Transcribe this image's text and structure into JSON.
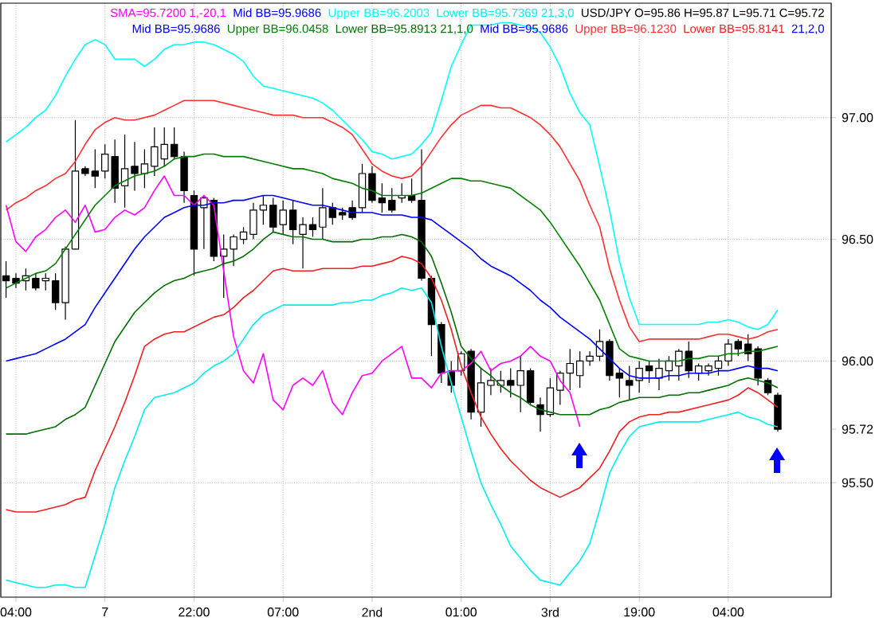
{
  "chart_data": {
    "type": "candlestick",
    "ohlc": [
      [
        96.35,
        96.41,
        96.26,
        96.33
      ],
      [
        96.34,
        96.36,
        96.3,
        96.32
      ],
      [
        96.33,
        96.38,
        96.29,
        96.35
      ],
      [
        96.34,
        96.36,
        96.29,
        96.3
      ],
      [
        96.33,
        96.36,
        96.29,
        96.34
      ],
      [
        96.33,
        96.36,
        96.21,
        96.24
      ],
      [
        96.24,
        96.47,
        96.17,
        96.46
      ],
      [
        96.46,
        96.99,
        96.46,
        96.78
      ],
      [
        96.79,
        96.8,
        96.76,
        96.77
      ],
      [
        96.78,
        96.87,
        96.71,
        96.76
      ],
      [
        96.78,
        96.89,
        96.75,
        96.85
      ],
      [
        96.84,
        96.91,
        96.65,
        96.71
      ],
      [
        96.72,
        96.93,
        96.63,
        96.79
      ],
      [
        96.8,
        96.9,
        96.7,
        96.77
      ],
      [
        96.77,
        96.87,
        96.71,
        96.81
      ],
      [
        96.8,
        96.96,
        96.76,
        96.88
      ],
      [
        96.83,
        96.96,
        96.8,
        96.89
      ],
      [
        96.89,
        96.96,
        96.83,
        96.84
      ],
      [
        96.84,
        96.86,
        96.65,
        96.7
      ],
      [
        96.68,
        96.7,
        96.35,
        96.46
      ],
      [
        96.63,
        96.68,
        96.46,
        96.67
      ],
      [
        96.66,
        96.67,
        96.41,
        96.43
      ],
      [
        96.43,
        96.52,
        96.26,
        96.46
      ],
      [
        96.46,
        96.52,
        96.39,
        96.51
      ],
      [
        96.5,
        96.55,
        96.48,
        96.53
      ],
      [
        96.52,
        96.65,
        96.5,
        96.62
      ],
      [
        96.62,
        96.68,
        96.56,
        96.64
      ],
      [
        96.64,
        96.67,
        96.53,
        96.55
      ],
      [
        96.56,
        96.66,
        96.52,
        96.62
      ],
      [
        96.62,
        96.66,
        96.48,
        96.54
      ],
      [
        96.52,
        96.59,
        96.38,
        96.56
      ],
      [
        96.56,
        96.59,
        96.51,
        96.54
      ],
      [
        96.55,
        96.71,
        96.5,
        96.63
      ],
      [
        96.63,
        96.65,
        96.56,
        96.59
      ],
      [
        96.61,
        96.63,
        96.58,
        96.6
      ],
      [
        96.63,
        96.66,
        96.58,
        96.59
      ],
      [
        96.63,
        96.81,
        96.61,
        96.77
      ],
      [
        96.77,
        96.8,
        96.65,
        96.66
      ],
      [
        96.67,
        96.73,
        96.61,
        96.65
      ],
      [
        96.66,
        96.71,
        96.61,
        96.62
      ],
      [
        96.67,
        96.73,
        96.65,
        96.68
      ],
      [
        96.68,
        96.75,
        96.65,
        96.66
      ],
      [
        96.66,
        96.87,
        96.33,
        96.34
      ],
      [
        96.34,
        96.35,
        96.02,
        96.15
      ],
      [
        96.15,
        96.16,
        95.91,
        95.95
      ],
      [
        95.96,
        96.0,
        95.87,
        95.9
      ],
      [
        95.96,
        96.04,
        95.94,
        96.03
      ],
      [
        96.04,
        96.05,
        95.76,
        95.79
      ],
      [
        95.79,
        95.97,
        95.73,
        95.91
      ],
      [
        95.9,
        95.97,
        95.86,
        95.92
      ],
      [
        95.9,
        95.96,
        95.87,
        95.92
      ],
      [
        95.92,
        95.97,
        95.85,
        95.9
      ],
      [
        95.9,
        96.02,
        95.79,
        95.96
      ],
      [
        95.96,
        95.97,
        95.82,
        95.83
      ],
      [
        95.82,
        95.85,
        95.71,
        95.78
      ],
      [
        95.78,
        95.93,
        95.77,
        95.89
      ],
      [
        95.88,
        95.96,
        95.82,
        95.95
      ],
      [
        95.95,
        96.05,
        95.88,
        95.99
      ],
      [
        95.94,
        96.04,
        95.89,
        96.0
      ],
      [
        96.0,
        96.04,
        95.98,
        96.02
      ],
      [
        96.02,
        96.13,
        96.0,
        96.08
      ],
      [
        96.08,
        96.09,
        95.92,
        95.94
      ],
      [
        95.95,
        95.97,
        95.85,
        95.93
      ],
      [
        95.92,
        95.98,
        95.84,
        95.9
      ],
      [
        95.92,
        96.0,
        95.87,
        95.97
      ],
      [
        95.98,
        96.0,
        95.91,
        95.96
      ],
      [
        95.93,
        96.01,
        95.88,
        95.97
      ],
      [
        95.96,
        96.02,
        95.92,
        96.0
      ],
      [
        95.98,
        96.05,
        95.92,
        96.04
      ],
      [
        96.04,
        96.08,
        95.93,
        95.96
      ],
      [
        95.95,
        95.99,
        95.92,
        95.98
      ],
      [
        95.96,
        95.99,
        95.94,
        95.98
      ],
      [
        95.97,
        96.02,
        95.94,
        96.0
      ],
      [
        96.0,
        96.09,
        95.98,
        96.07
      ],
      [
        96.08,
        96.09,
        96.02,
        96.05
      ],
      [
        96.07,
        96.11,
        96.0,
        96.03
      ],
      [
        96.05,
        96.06,
        95.9,
        95.93
      ],
      [
        95.92,
        95.93,
        95.86,
        95.87
      ],
      [
        95.86,
        95.87,
        95.71,
        95.72
      ]
    ],
    "series": [
      {
        "name": "SMA=95.7200  1,-20,1",
        "type": "line",
        "color": "#ff00ff",
        "values": [
          96.64,
          96.49,
          96.45,
          96.51,
          96.54,
          96.59,
          96.62,
          96.57,
          96.64,
          96.53,
          96.54,
          96.59,
          96.62,
          96.6,
          96.63,
          96.7,
          96.76,
          96.68,
          96.68,
          96.64,
          96.68,
          96.64,
          96.37,
          96.1,
          95.96,
          95.91,
          96.03,
          95.84,
          95.8,
          95.9,
          95.93,
          95.9,
          95.96,
          95.83,
          95.78,
          95.87,
          95.94,
          95.95,
          96.0,
          96.03,
          96.06,
          95.93,
          95.93,
          95.89,
          95.95,
          95.96,
          95.96,
          95.99,
          96.04,
          95.96,
          95.99,
          96.0,
          96.02,
          96.06,
          96.02,
          96.0,
          95.92,
          95.87,
          95.73,
          null,
          null,
          null,
          null,
          null,
          null,
          null,
          null,
          null,
          null,
          null,
          null,
          null,
          null,
          null,
          null,
          null,
          null,
          null,
          null
        ]
      },
      {
        "name": "Mid BB=95.9686",
        "type": "line",
        "color": "#0000ff",
        "values": [
          96.0,
          96.01,
          96.02,
          96.03,
          96.05,
          96.07,
          96.09,
          96.12,
          96.15,
          96.22,
          96.28,
          96.34,
          96.4,
          96.46,
          96.51,
          96.55,
          96.59,
          96.61,
          96.63,
          96.64,
          96.64,
          96.65,
          96.65,
          96.66,
          96.66,
          96.67,
          96.68,
          96.68,
          96.67,
          96.66,
          96.65,
          96.64,
          96.64,
          96.63,
          96.62,
          96.61,
          96.61,
          96.61,
          96.6,
          96.6,
          96.6,
          96.59,
          96.59,
          96.58,
          96.55,
          96.52,
          96.49,
          96.46,
          96.42,
          96.39,
          96.37,
          96.35,
          96.32,
          96.29,
          96.25,
          96.22,
          96.18,
          96.15,
          96.12,
          96.09,
          96.05,
          96.01,
          95.97,
          95.94,
          95.93,
          95.93,
          95.93,
          95.94,
          95.94,
          95.95,
          95.95,
          95.95,
          95.96,
          95.96,
          95.97,
          95.98,
          95.97,
          95.97,
          95.96
        ]
      },
      {
        "name": "Upper BB=96.2003",
        "type": "line",
        "color": "#00ffff",
        "values": [
          96.9,
          96.93,
          96.96,
          97.0,
          97.03,
          97.09,
          97.17,
          97.24,
          97.3,
          97.32,
          97.3,
          97.24,
          97.24,
          97.24,
          97.21,
          97.24,
          97.28,
          97.3,
          97.3,
          97.31,
          97.31,
          97.3,
          97.28,
          97.26,
          97.23,
          97.17,
          97.13,
          97.12,
          97.11,
          97.1,
          97.09,
          97.08,
          97.06,
          97.03,
          96.99,
          96.95,
          96.91,
          96.86,
          96.85,
          96.83,
          96.84,
          96.85,
          96.89,
          96.94,
          97.07,
          97.21,
          97.3,
          97.38,
          97.38,
          97.38,
          97.39,
          97.39,
          97.38,
          97.37,
          97.35,
          97.29,
          97.21,
          97.1,
          97.02,
          96.97,
          96.8,
          96.62,
          96.41,
          96.26,
          96.15,
          96.15,
          96.15,
          96.15,
          96.15,
          96.15,
          96.15,
          96.16,
          96.16,
          96.17,
          96.16,
          96.14,
          96.13,
          96.15,
          96.21
        ]
      },
      {
        "name": "Lower BB=95.7369  21,3,0",
        "type": "line",
        "color": "#00eeee",
        "values": [
          95.1,
          95.09,
          95.08,
          95.07,
          95.07,
          95.08,
          95.08,
          95.07,
          95.07,
          95.2,
          95.33,
          95.48,
          95.59,
          95.69,
          95.8,
          95.85,
          95.86,
          95.87,
          95.89,
          95.91,
          95.95,
          95.98,
          96.0,
          96.03,
          96.09,
          96.15,
          96.19,
          96.21,
          96.23,
          96.23,
          96.23,
          96.23,
          96.23,
          96.23,
          96.24,
          96.24,
          96.25,
          96.25,
          96.27,
          96.28,
          96.3,
          96.29,
          96.3,
          96.24,
          96.06,
          95.91,
          95.77,
          95.63,
          95.5,
          95.41,
          95.33,
          95.24,
          95.19,
          95.14,
          95.1,
          95.09,
          95.08,
          95.13,
          95.18,
          95.25,
          95.39,
          95.54,
          95.62,
          95.69,
          95.73,
          95.74,
          95.75,
          95.75,
          95.75,
          95.75,
          95.75,
          95.76,
          95.77,
          95.78,
          95.79,
          95.77,
          95.76,
          95.74,
          95.73
        ]
      },
      {
        "name": "Upper BB=96.0458",
        "type": "line",
        "color": "#008000",
        "values": [
          96.3,
          96.32,
          96.34,
          96.36,
          96.37,
          96.4,
          96.46,
          96.52,
          96.58,
          96.64,
          96.68,
          96.72,
          96.74,
          96.76,
          96.77,
          96.78,
          96.8,
          96.83,
          96.84,
          96.84,
          96.85,
          96.85,
          96.84,
          96.84,
          96.84,
          96.83,
          96.82,
          96.81,
          96.8,
          96.79,
          96.79,
          96.78,
          96.77,
          96.75,
          96.74,
          96.73,
          96.71,
          96.7,
          96.68,
          96.68,
          96.68,
          96.68,
          96.69,
          96.71,
          96.73,
          96.75,
          96.75,
          96.74,
          96.74,
          96.73,
          96.72,
          96.71,
          96.68,
          96.65,
          96.62,
          96.57,
          96.51,
          96.45,
          96.39,
          96.32,
          96.25,
          96.15,
          96.05,
          96.02,
          96.01,
          96.0,
          96.0,
          96.0,
          96.0,
          96.01,
          96.01,
          96.02,
          96.02,
          96.03,
          96.03,
          96.04,
          96.04,
          96.05,
          96.06
        ]
      },
      {
        "name": "Lower BB=95.8913  21,1,0",
        "type": "line",
        "color": "#006e00",
        "values": [
          95.7,
          95.7,
          95.7,
          95.71,
          95.72,
          95.73,
          95.76,
          95.78,
          95.81,
          95.9,
          95.99,
          96.08,
          96.14,
          96.2,
          96.24,
          96.28,
          96.31,
          96.33,
          96.34,
          96.36,
          96.37,
          96.38,
          96.4,
          96.41,
          96.43,
          96.46,
          96.5,
          96.53,
          96.52,
          96.51,
          96.51,
          96.5,
          96.5,
          96.49,
          96.49,
          96.49,
          96.5,
          96.5,
          96.51,
          96.51,
          96.52,
          96.51,
          96.49,
          96.43,
          96.32,
          96.2,
          96.06,
          96.01,
          95.97,
          95.94,
          95.9,
          95.87,
          95.85,
          95.82,
          95.8,
          95.79,
          95.78,
          95.78,
          95.78,
          95.78,
          95.8,
          95.81,
          95.83,
          95.84,
          95.85,
          95.85,
          95.85,
          95.86,
          95.86,
          95.87,
          95.87,
          95.88,
          95.89,
          95.9,
          95.92,
          95.93,
          95.92,
          95.91,
          95.89
        ]
      },
      {
        "name": "Upper BB=96.1230",
        "type": "line",
        "color": "#ff3030",
        "values": [
          96.62,
          96.65,
          96.67,
          96.7,
          96.72,
          96.75,
          96.77,
          96.82,
          96.89,
          96.95,
          96.98,
          97.0,
          96.99,
          96.99,
          97.0,
          97.01,
          97.03,
          97.05,
          97.07,
          97.07,
          97.07,
          97.07,
          97.06,
          97.05,
          97.04,
          97.03,
          97.02,
          97.01,
          97.01,
          97.01,
          97.0,
          97.0,
          97.0,
          96.98,
          96.96,
          96.93,
          96.87,
          96.81,
          96.78,
          96.76,
          96.75,
          96.76,
          96.8,
          96.86,
          96.92,
          96.97,
          97.01,
          97.03,
          97.05,
          97.05,
          97.04,
          97.04,
          97.02,
          97.0,
          96.97,
          96.93,
          96.88,
          96.81,
          96.74,
          96.64,
          96.55,
          96.38,
          96.25,
          96.14,
          96.08,
          96.09,
          96.09,
          96.09,
          96.09,
          96.09,
          96.09,
          96.1,
          96.11,
          96.11,
          96.1,
          96.09,
          96.1,
          96.12,
          96.13
        ]
      },
      {
        "name": "Lower BB=95.8141",
        "type": "line",
        "color": "#f02020",
        "values": [
          95.39,
          95.38,
          95.38,
          95.38,
          95.39,
          95.4,
          95.41,
          95.43,
          95.44,
          95.55,
          95.64,
          95.73,
          95.83,
          95.94,
          96.06,
          96.09,
          96.11,
          96.12,
          96.12,
          96.14,
          96.16,
          96.18,
          96.19,
          96.22,
          96.26,
          96.29,
          96.33,
          96.37,
          96.38,
          96.37,
          96.37,
          96.37,
          96.38,
          96.38,
          96.38,
          96.38,
          96.39,
          96.39,
          96.4,
          96.41,
          96.43,
          96.42,
          96.4,
          96.34,
          96.25,
          96.13,
          95.98,
          95.87,
          95.77,
          95.7,
          95.64,
          95.59,
          95.55,
          95.51,
          95.48,
          95.46,
          95.44,
          95.46,
          95.48,
          95.52,
          95.56,
          95.63,
          95.71,
          95.75,
          95.77,
          95.78,
          95.78,
          95.79,
          95.79,
          95.8,
          95.81,
          95.82,
          95.83,
          95.84,
          95.86,
          95.89,
          95.87,
          95.84,
          95.81
        ]
      }
    ],
    "annotations": [
      "USD/JPY O=95.86 H=95.87 L=95.71 C=95.72",
      "Mid BB=95.9686",
      "Mid BB=95.9686",
      "21,2,0"
    ],
    "categories": [
      null,
      "04:00",
      null,
      null,
      null,
      null,
      null,
      null,
      null,
      null,
      "7",
      null,
      null,
      null,
      null,
      null,
      null,
      null,
      null,
      "22:00",
      null,
      null,
      null,
      null,
      null,
      null,
      null,
      null,
      "07:00",
      null,
      null,
      null,
      null,
      null,
      null,
      null,
      null,
      "2nd",
      null,
      null,
      null,
      null,
      null,
      null,
      null,
      null,
      "01:00",
      null,
      null,
      null,
      null,
      null,
      null,
      null,
      null,
      "3rd",
      null,
      null,
      null,
      null,
      null,
      null,
      null,
      null,
      "19:00",
      null,
      null,
      null,
      null,
      null,
      null,
      null,
      null,
      "04:00",
      null,
      null,
      null,
      null,
      null
    ],
    "ylim": [
      95.03,
      97.47
    ],
    "yticks": [
      {
        "value": 95.5,
        "label": "95.50"
      },
      {
        "value": 95.72,
        "label": "95.72"
      },
      {
        "value": 96,
        "label": "96.00"
      },
      {
        "value": 96.5,
        "label": "96.50"
      },
      {
        "value": 97,
        "label": "97.00"
      }
    ],
    "grid": true,
    "legend": "top right"
  }
}
